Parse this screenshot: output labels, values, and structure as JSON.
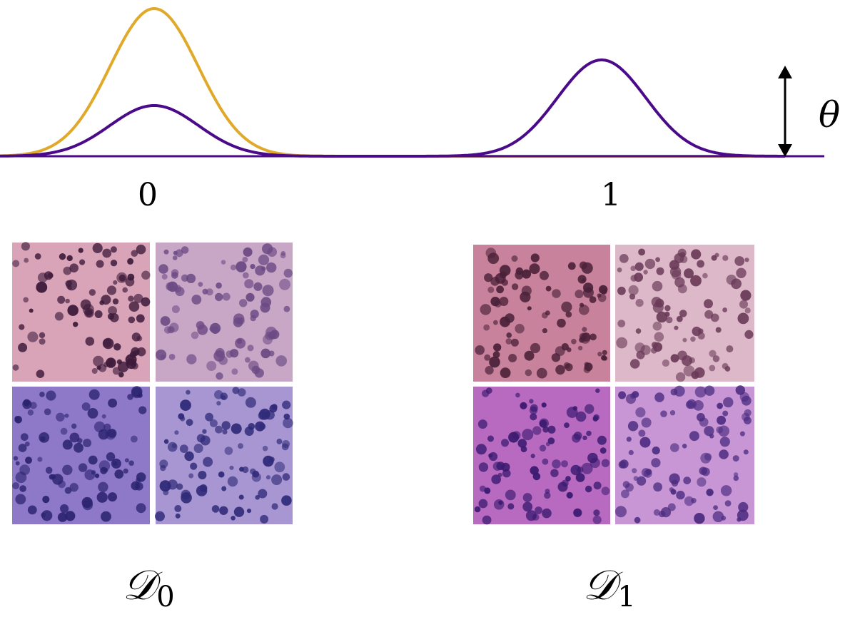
{
  "labels": {
    "left_mode": "0",
    "right_mode": "1",
    "parameter": "θ"
  },
  "datasets": [
    {
      "symbol": "𝒟",
      "subscript": "0"
    },
    {
      "symbol": "𝒟",
      "subscript": "1"
    }
  ]
}
